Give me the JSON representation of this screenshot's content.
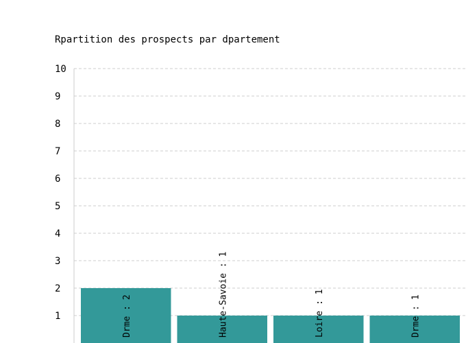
{
  "chart_data": {
    "type": "bar",
    "title": "Rpartition des prospects par dpartement",
    "xlabel": "",
    "ylabel": "",
    "ylim": [
      0,
      10
    ],
    "yticks": [
      1,
      2,
      3,
      4,
      5,
      6,
      7,
      8,
      9,
      10
    ],
    "grid": true,
    "categories": [
      "Drme",
      "Haute-Savoie",
      "Loire",
      "Drme"
    ],
    "values": [
      2,
      1,
      1,
      1
    ],
    "data_labels": [
      "Drme : 2",
      "Haute-Savoie : 1",
      "Loire : 1",
      "Drme : 1"
    ],
    "colors": {
      "bar": "#339999",
      "grid": "#cccccc",
      "axis": "#cccccc"
    }
  }
}
